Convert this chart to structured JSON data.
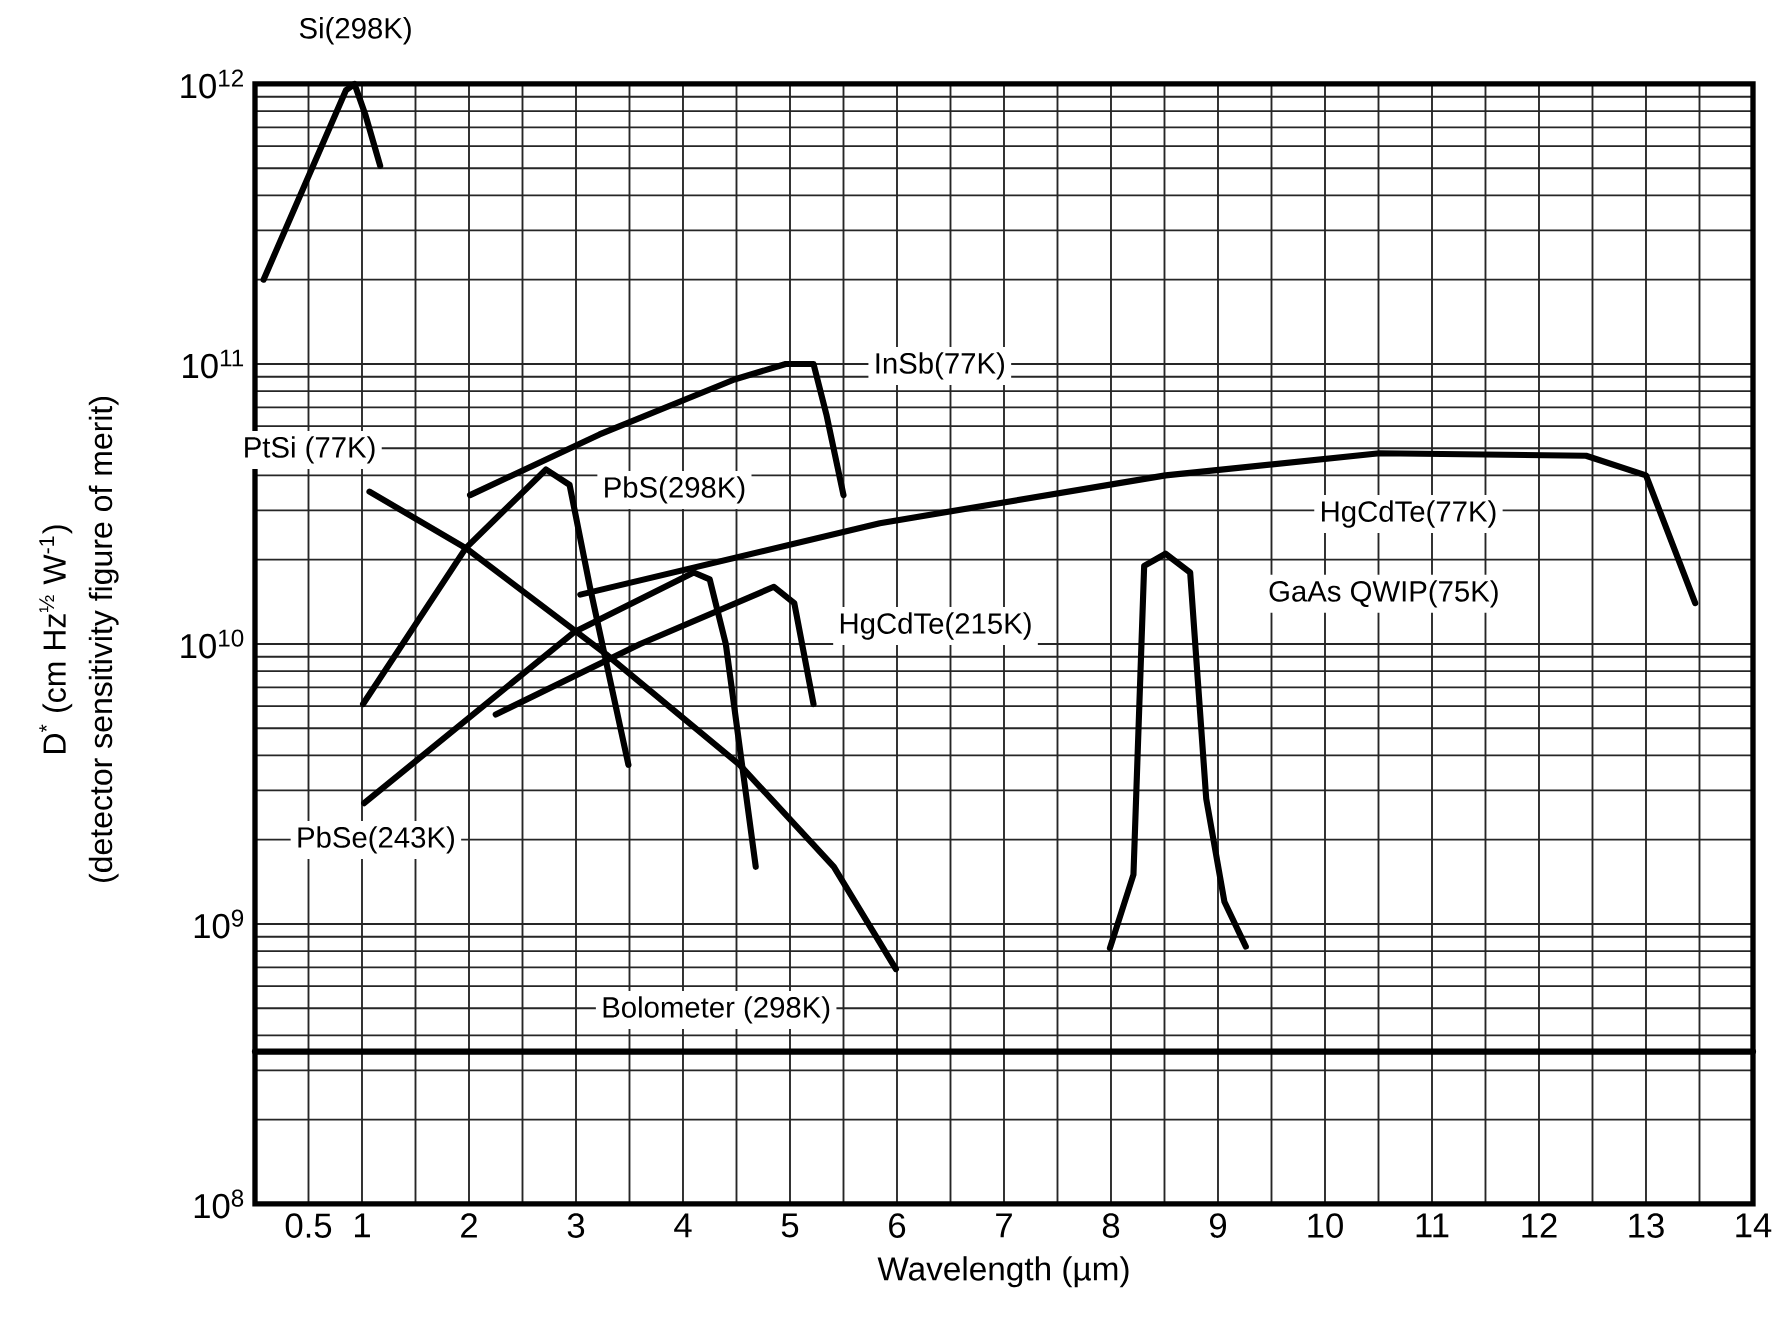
{
  "chart_data": {
    "type": "line",
    "xlabel": "Wavelength (µm)",
    "ylabel": "D$^{*}$ (cm Hz$^{½}$ W$^{-1}$)",
    "annotations": [
      "(detector sensitivity figure of merit)"
    ],
    "xlim": [
      0,
      14
    ],
    "ylim": [
      100000000.0,
      1000000000000.0
    ],
    "log": "y",
    "grid": true,
    "marker": "none",
    "line_style": "solid",
    "xticks": [
      0.5,
      1,
      {
        "value": 1.5,
        "label": null
      },
      2,
      {
        "value": 2.5,
        "label": null
      },
      3,
      {
        "value": 3.5,
        "label": null
      },
      4,
      {
        "value": 4.5,
        "label": null
      },
      5,
      {
        "value": 5.5,
        "label": null
      },
      6,
      {
        "value": 6.5,
        "label": null
      },
      7,
      {
        "value": 7.5,
        "label": null
      },
      8,
      {
        "value": 8.5,
        "label": null
      },
      9,
      {
        "value": 9.5,
        "label": null
      },
      10,
      {
        "value": 10.5,
        "label": null
      },
      11,
      {
        "value": 11.5,
        "label": null
      },
      12,
      {
        "value": 12.5,
        "label": null
      },
      13,
      {
        "value": 13.5,
        "label": null
      },
      14
    ],
    "yticks": [
      {
        "value": 100000000.0,
        "label": "10$^{8}$"
      },
      {
        "value": 1000000000.0,
        "label": "10$^{9}$"
      },
      {
        "value": 10000000000.0,
        "label": "10$^{10}$"
      },
      {
        "value": 100000000000.0,
        "label": "10$^{11}$"
      },
      {
        "value": 1000000000000.0,
        "label": "10$^{12}$"
      }
    ],
    "series": [
      {
        "name": "Si(298K)",
        "color": "#000000",
        "x": [
          0.08,
          0.85,
          0.93,
          1.03,
          1.17
        ],
        "values": [
          200000000000.0,
          950000000000.0,
          1000000000000.0,
          780000000000.0,
          510000000000.0
        ]
      },
      {
        "name": "InSb(77K)",
        "color": "#000000",
        "x": [
          2.01,
          3.22,
          4.48,
          4.96,
          5.22,
          5.34,
          5.5
        ],
        "values": [
          34000000000.0,
          56000000000.0,
          88000000000.0,
          100000000000.0,
          100000000000.0,
          66000000000.0,
          34000000000.0
        ]
      },
      {
        "name": "PtSi (77K)",
        "color": "#000000",
        "x": [
          1.07,
          1.97,
          3.28,
          4.53,
          5.41,
          5.99
        ],
        "values": [
          35000000000.0,
          22000000000.0,
          9200000000.0,
          3700000000.0,
          1600000000.0,
          690000000.0
        ]
      },
      {
        "name": "PbS(298K)",
        "color": "#000000",
        "x": [
          1.01,
          1.97,
          2.72,
          2.94,
          3.13,
          3.49
        ],
        "values": [
          6100000000.0,
          22000000000.0,
          42000000000.0,
          37000000000.0,
          16000000000.0,
          3700000000.0
        ]
      },
      {
        "name": "HgCdTe(77K)",
        "color": "#000000",
        "x": [
          3.04,
          5.84,
          8.51,
          10.51,
          12.44,
          13.0,
          13.46
        ],
        "values": [
          15000000000.0,
          27000000000.0,
          40000000000.0,
          48000000000.0,
          47000000000.0,
          40000000000.0,
          14000000000.0
        ]
      },
      {
        "name": "HgCdTe(215K)",
        "color": "#000000",
        "x": [
          2.25,
          3.6,
          4.85,
          5.04,
          5.22
        ],
        "values": [
          5600000000.0,
          10000000000.0,
          16000000000.0,
          14000000000.0,
          6100000000.0
        ]
      },
      {
        "name": "GaAs QWIP(75K)",
        "color": "#000000",
        "x": [
          7.99,
          8.21,
          8.31,
          8.51,
          8.74,
          8.89,
          9.06,
          9.26
        ],
        "values": [
          820000000.0,
          1500000000.0,
          19000000000.0,
          21000000000.0,
          18000000000.0,
          2800000000.0,
          1200000000.0,
          830000000.0
        ]
      },
      {
        "name": "PbSe(243K)",
        "color": "#000000",
        "x": [
          1.02,
          2.98,
          4.1,
          4.25,
          4.4,
          4.68
        ],
        "values": [
          2700000000.0,
          11000000000.0,
          18000000000.0,
          17000000000.0,
          10000000000.0,
          1600000000.0
        ]
      },
      {
        "name": "Bolometer (298K)",
        "color": "#000000",
        "x": [
          0,
          14
        ],
        "values": [
          350000000.0,
          350000000.0
        ]
      }
    ]
  }
}
